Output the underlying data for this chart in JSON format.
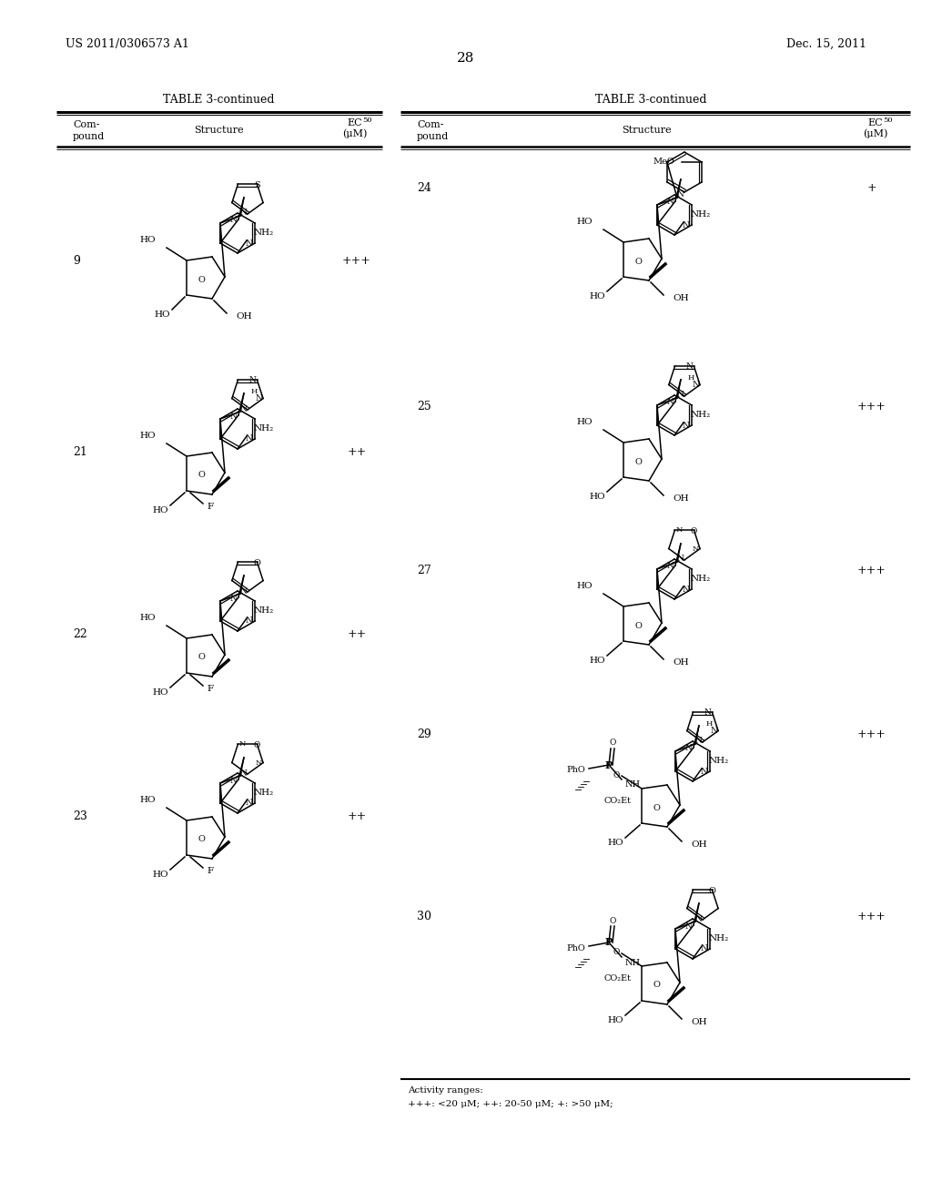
{
  "page_number": "28",
  "patent_number": "US 2011/0306573 A1",
  "patent_date": "Dec. 15, 2011",
  "table_title": "TABLE 3-continued",
  "activity_footnote_line1": "Activity ranges:",
  "activity_footnote_line2": "+++: <20 μM; ++: 20-50 μM; +: >50 μM;",
  "left_compounds": [
    {
      "id": "9",
      "activity": "+++"
    },
    {
      "id": "21",
      "activity": "++"
    },
    {
      "id": "22",
      "activity": "++"
    },
    {
      "id": "23",
      "activity": "++"
    }
  ],
  "right_compounds": [
    {
      "id": "24",
      "activity": "+"
    },
    {
      "id": "25",
      "activity": "+++"
    },
    {
      "id": "27",
      "activity": "+++"
    },
    {
      "id": "29",
      "activity": "+++"
    },
    {
      "id": "30",
      "activity": "+++"
    }
  ]
}
